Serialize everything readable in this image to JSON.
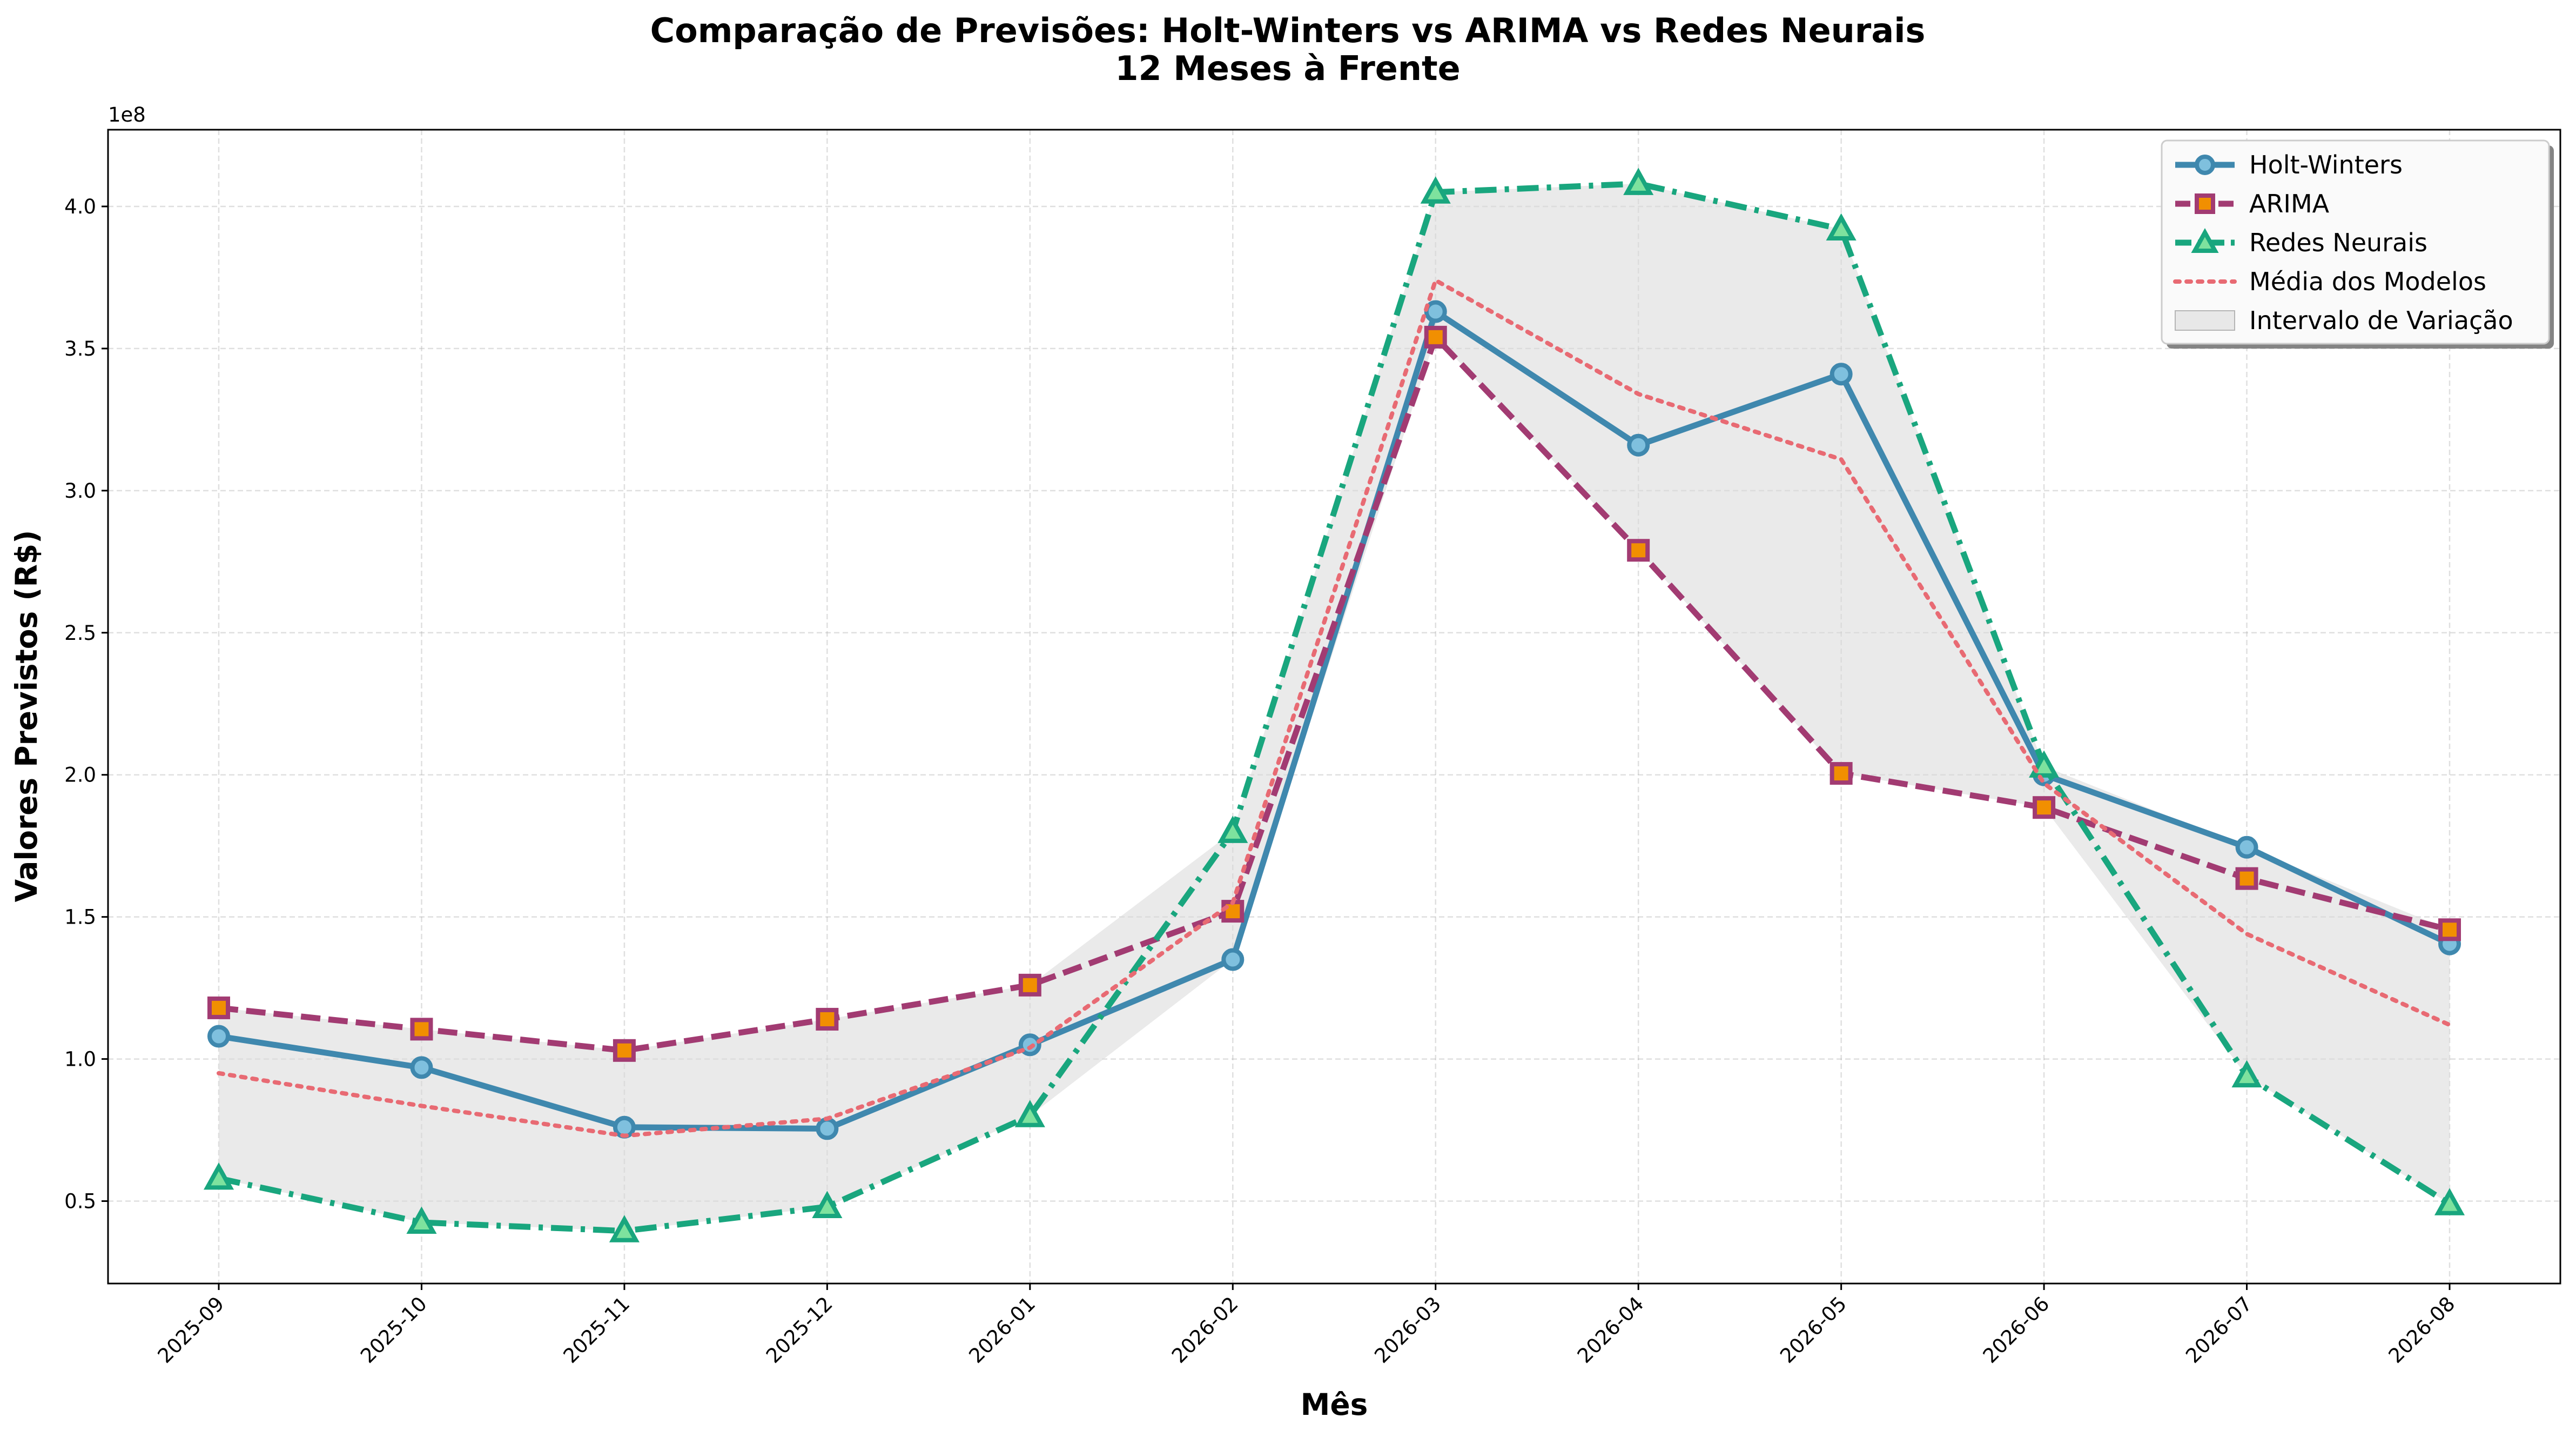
{
  "chart_data": {
    "type": "line",
    "title_line1": "Comparação de Previsões: Holt-Winters vs ARIMA vs Redes Neurais",
    "title_line2": "12 Meses à Frente",
    "xlabel": "Mês",
    "ylabel": "Valores Previstos (R$)",
    "y_offset_label": "1e8",
    "y_scale": 100000000,
    "categories": [
      "2025-09",
      "2025-10",
      "2025-11",
      "2025-12",
      "2026-01",
      "2026-02",
      "2026-03",
      "2026-04",
      "2026-05",
      "2026-06",
      "2026-07",
      "2026-08"
    ],
    "ylim": [
      0.21,
      4.27
    ],
    "yticks": [
      0.5,
      1.0,
      1.5,
      2.0,
      2.5,
      3.0,
      3.5,
      4.0
    ],
    "ytick_labels": [
      "0.5",
      "1.0",
      "1.5",
      "2.0",
      "2.5",
      "3.0",
      "3.5",
      "4.0"
    ],
    "grid": true,
    "legend_position": "top-right",
    "series": [
      {
        "name": "Holt-Winters",
        "style": "solid",
        "marker": "circle",
        "color": "#3f88ae",
        "marker_fill": "#7fc0de",
        "values": [
          1.08,
          0.97,
          0.76,
          0.755,
          1.05,
          1.35,
          3.63,
          3.16,
          3.41,
          2.0,
          1.745,
          1.405
        ]
      },
      {
        "name": "ARIMA",
        "style": "dashed",
        "marker": "square",
        "color": "#a23b72",
        "marker_fill": "#f18f01",
        "values": [
          1.18,
          1.105,
          1.03,
          1.14,
          1.26,
          1.52,
          3.54,
          2.79,
          2.005,
          1.885,
          1.635,
          1.455
        ]
      },
      {
        "name": "Redes Neurais",
        "style": "dashdot",
        "marker": "triangle",
        "color": "#19a67e",
        "marker_fill": "#7ee29e",
        "values": [
          0.58,
          0.425,
          0.395,
          0.48,
          0.8,
          1.8,
          4.05,
          4.08,
          3.92,
          2.03,
          0.94,
          0.49
        ]
      },
      {
        "name": "Média dos Modelos",
        "style": "dotted",
        "marker": "none",
        "color": "#e86a73",
        "values": [
          0.95,
          0.835,
          0.73,
          0.79,
          1.04,
          1.55,
          3.74,
          3.34,
          3.11,
          1.97,
          1.44,
          1.12
        ]
      }
    ],
    "band": {
      "name": "Intervalo de Variação",
      "color": "#d9d9d9"
    }
  }
}
